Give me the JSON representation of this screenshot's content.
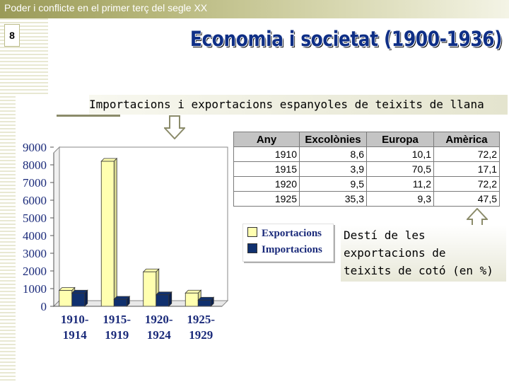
{
  "header": {
    "title": "Poder i conflicte en el primer terç del segle XX"
  },
  "slide": {
    "number": "8",
    "main_title": "Economia i societat (1900-1936)",
    "subtitle": "Importacions i exportacions espanyoles de teixits de llana"
  },
  "chart_data": {
    "type": "bar",
    "categories": [
      "1910-1914",
      "1915-1919",
      "1920-1924",
      "1925-1929"
    ],
    "category_lines": [
      [
        "1910-",
        "1914"
      ],
      [
        "1915-",
        "1919"
      ],
      [
        "1920-",
        "1924"
      ],
      [
        "1925-",
        "1929"
      ]
    ],
    "series": [
      {
        "name": "Exportacions",
        "values": [
          900,
          8200,
          1950,
          750
        ],
        "color": "#ffffb0"
      },
      {
        "name": "Importacions",
        "values": [
          750,
          400,
          650,
          350
        ],
        "color": "#10306e"
      }
    ],
    "ylim": [
      0,
      9000
    ],
    "yticks": [
      "0",
      "1000",
      "2000",
      "3000",
      "4000",
      "5000",
      "6000",
      "7000",
      "8000",
      "9000"
    ],
    "legend_position": "right",
    "grid": false
  },
  "table": {
    "headers": [
      "Any",
      "Excolònies",
      "Europa",
      "Amèrica"
    ],
    "rows": [
      [
        "1910",
        "8,6",
        "10,1",
        "72,2"
      ],
      [
        "1915",
        "3,9",
        "70,5",
        "17,1"
      ],
      [
        "1920",
        "9,5",
        "11,2",
        "72,2"
      ],
      [
        "1925",
        "35,3",
        "9,3",
        "47,5"
      ]
    ]
  },
  "note": {
    "lines": [
      "Destí de les",
      "exportacions de",
      "teixits de cotó (en %)"
    ]
  },
  "colors": {
    "title_blue": "#0f2f86",
    "export_yellow": "#ffffb0",
    "import_navy": "#10306e",
    "header_gradient_start": "#9a9a58"
  }
}
